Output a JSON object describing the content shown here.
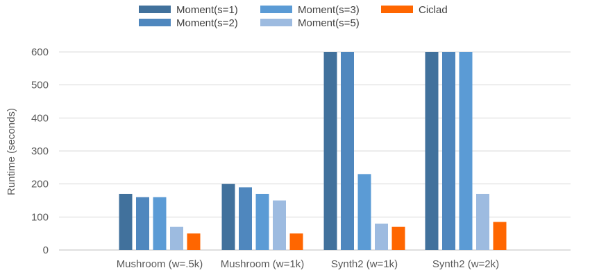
{
  "chart_data": {
    "type": "bar",
    "title": "",
    "xlabel": "",
    "ylabel": "Runtime (seconds)",
    "ylim": [
      0,
      600
    ],
    "yticks": [
      0,
      100,
      200,
      300,
      400,
      500,
      600
    ],
    "grid": true,
    "legend_position": "top",
    "categories": [
      "Mushroom (w=.5k)",
      "Mushroom (w=1k)",
      "Synth2 (w=1k)",
      "Synth2 (w=2k)"
    ],
    "series": [
      {
        "name": "Moment(s=1)",
        "color": "#41719c",
        "values": [
          170,
          200,
          600,
          600
        ]
      },
      {
        "name": "Moment(s=2)",
        "color": "#4f87be",
        "values": [
          160,
          190,
          600,
          600
        ]
      },
      {
        "name": "Moment(s=3)",
        "color": "#5b9bd5",
        "values": [
          160,
          170,
          230,
          600
        ]
      },
      {
        "name": "Moment(s=5)",
        "color": "#9dbbe0",
        "values": [
          70,
          150,
          80,
          170
        ]
      },
      {
        "name": "Ciclad",
        "color": "#ff6600",
        "values": [
          50,
          50,
          70,
          85
        ]
      }
    ]
  }
}
